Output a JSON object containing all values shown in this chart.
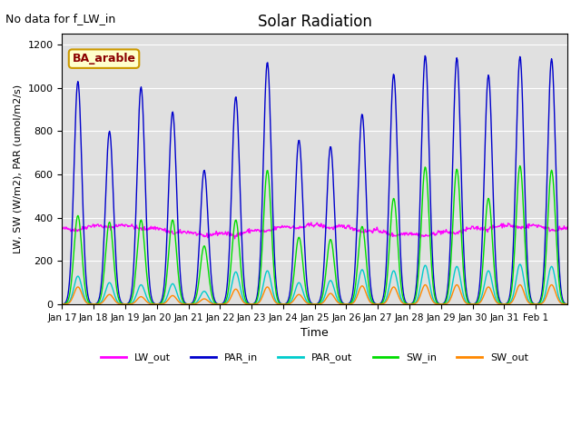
{
  "title": "Solar Radiation",
  "top_left_text": "No data for f_LW_in",
  "legend_box_label": "BA_arable",
  "xlabel": "Time",
  "ylabel": "LW, SW (W/m2), PAR (umol/m2/s)",
  "ylim": [
    0,
    1250
  ],
  "yticks": [
    0,
    200,
    400,
    600,
    800,
    1000,
    1200
  ],
  "n_days": 16,
  "colors": {
    "LW_out": "#ff00ff",
    "PAR_in": "#0000cc",
    "PAR_out": "#00cccc",
    "SW_in": "#00dd00",
    "SW_out": "#ff8800"
  },
  "background_color": "#e0e0e0",
  "xtick_labels": [
    "Jan 17",
    "Jan 18",
    "Jan 19",
    "Jan 20",
    "Jan 21",
    "Jan 22",
    "Jan 23",
    "Jan 24",
    "Jan 25",
    "Jan 26",
    "Jan 27",
    "Jan 28",
    "Jan 29",
    "Jan 30",
    "Jan 31",
    "Feb 1"
  ],
  "PAR_in_peaks": [
    1030,
    800,
    1005,
    890,
    620,
    960,
    1120,
    760,
    730,
    880,
    1065,
    1150,
    1140,
    1060,
    1145,
    1135
  ],
  "SW_in_peaks": [
    410,
    380,
    390,
    390,
    270,
    390,
    620,
    310,
    300,
    360,
    490,
    635,
    625,
    490,
    640,
    620
  ],
  "SW_out_peaks": [
    80,
    45,
    35,
    40,
    25,
    70,
    80,
    45,
    50,
    85,
    80,
    90,
    90,
    80,
    90,
    90
  ],
  "PAR_out_peaks": [
    130,
    100,
    90,
    95,
    60,
    150,
    155,
    100,
    110,
    160,
    155,
    180,
    175,
    155,
    185,
    175
  ],
  "LW_out_base": 350,
  "LW_out_variation": 20
}
